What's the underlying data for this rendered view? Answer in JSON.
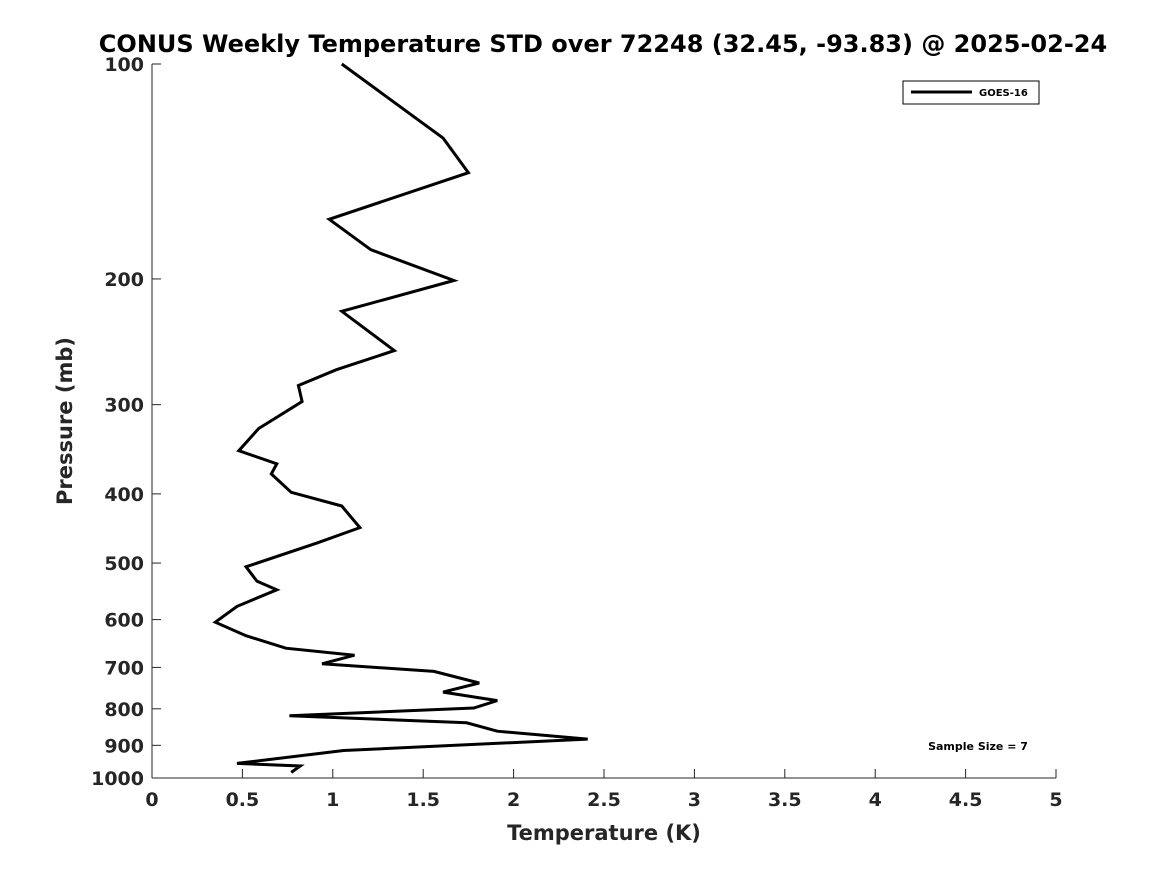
{
  "chart_data": {
    "type": "line",
    "title": "CONUS Weekly Temperature STD over 72248 (32.45, -93.83) @ 2025-02-24",
    "xlabel": "Temperature (K)",
    "ylabel": "Pressure (mb)",
    "xlim": [
      0,
      5
    ],
    "ylim": [
      100,
      1000
    ],
    "y_scale": "log",
    "y_reversed": true,
    "x_ticks": [
      "0",
      "0.5",
      "1",
      "1.5",
      "2",
      "2.5",
      "3",
      "3.5",
      "4",
      "4.5",
      "5"
    ],
    "y_ticks": [
      "100",
      "200",
      "300",
      "400",
      "500",
      "600",
      "700",
      "800",
      "900",
      "1000"
    ],
    "grid": false,
    "legend_position": "top-right",
    "annotation": "Sample Size = 7",
    "series": [
      {
        "name": "GOES-16",
        "color": "#000000",
        "x": [
          1.05,
          1.61,
          1.75,
          0.98,
          1.21,
          1.67,
          1.05,
          1.34,
          1.02,
          0.81,
          0.83,
          0.59,
          0.48,
          0.69,
          0.66,
          0.77,
          1.05,
          1.08,
          1.15,
          0.91,
          0.52,
          0.58,
          0.69,
          0.47,
          0.35,
          0.52,
          0.74,
          1.12,
          0.94,
          1.56,
          1.81,
          1.61,
          1.91,
          1.78,
          0.76,
          1.74,
          1.91,
          2.41,
          1.06,
          0.47,
          0.82,
          0.77
        ],
        "y": [
          100,
          127,
          142,
          165,
          182,
          201,
          222,
          252,
          268,
          282,
          297,
          324,
          348,
          363,
          375,
          398,
          416,
          425,
          446,
          469,
          506,
          530,
          545,
          575,
          605,
          632,
          658,
          673,
          692,
          709,
          736,
          758,
          779,
          798,
          818,
          837,
          860,
          882,
          915,
          954,
          962,
          982
        ]
      }
    ]
  }
}
